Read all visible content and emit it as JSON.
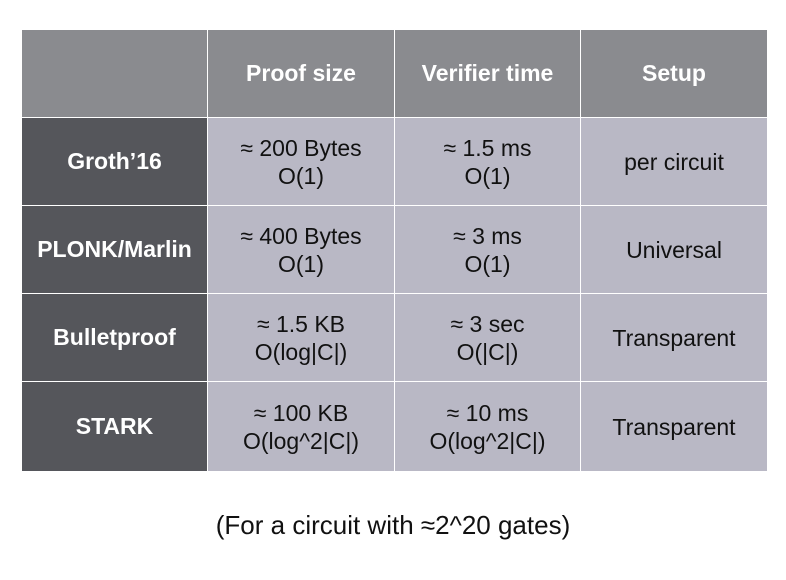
{
  "chart_data": {
    "type": "table",
    "columns": [
      "",
      "Proof size",
      "Verifier time",
      "Setup"
    ],
    "rows": [
      {
        "label": "Groth’16",
        "proof_size": [
          "≈ 200 Bytes",
          "O(1)"
        ],
        "verifier_time": [
          "≈ 1.5 ms",
          "O(1)"
        ],
        "setup": "per circuit"
      },
      {
        "label": "PLONK/Marlin",
        "proof_size": [
          "≈ 400 Bytes",
          "O(1)"
        ],
        "verifier_time": [
          "≈ 3 ms",
          "O(1)"
        ],
        "setup": "Universal"
      },
      {
        "label": "Bulletproof",
        "proof_size": [
          "≈ 1.5 KB",
          "O(log|C|)"
        ],
        "verifier_time": [
          "≈ 3 sec",
          "O(|C|)"
        ],
        "setup": "Transparent"
      },
      {
        "label": "STARK",
        "proof_size": [
          "≈ 100 KB",
          "O(log^2|C|)"
        ],
        "verifier_time": [
          "≈ 10 ms",
          "O(log^2|C|)"
        ],
        "setup": "Transparent"
      }
    ],
    "caption": "(For a circuit with ≈2^20 gates)"
  },
  "colors": {
    "header_bg": "#8a8b8f",
    "row_header_bg": "#55565b",
    "data_bg": "#b9b8c5"
  }
}
